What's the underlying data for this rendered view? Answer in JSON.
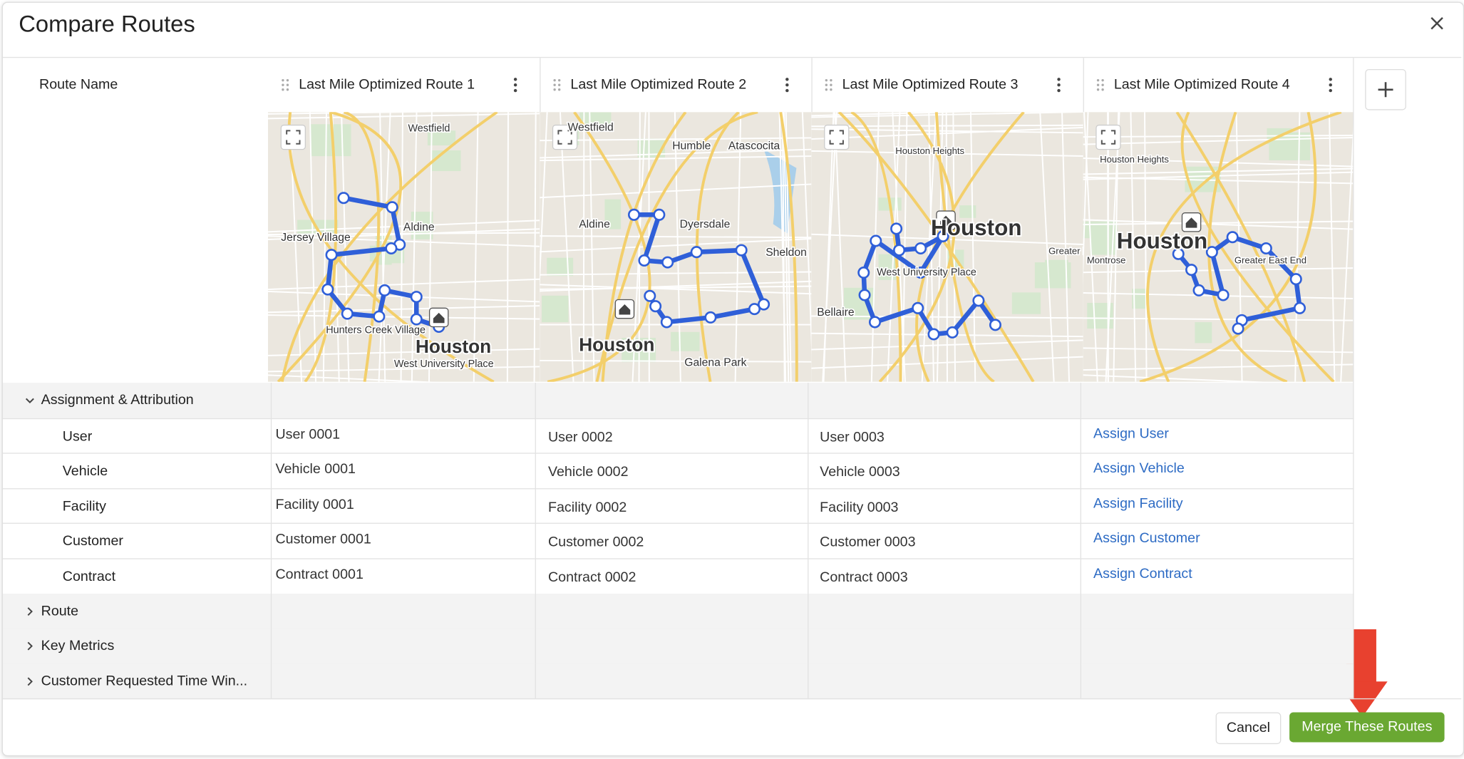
{
  "header": {
    "title": "Compare Routes"
  },
  "table": {
    "first_header": "Route Name",
    "routes": [
      "Last Mile Optimized Route 1",
      "Last Mile Optimized Route 2",
      "Last Mile Optimized Route 3",
      "Last Mile Optimized Route 4"
    ],
    "maps": [
      {
        "labels": [
          "Westfield",
          "Aldine",
          "Jersey Village",
          "Hunters Creek Village",
          "West University Place",
          "Houston"
        ]
      },
      {
        "labels": [
          "Westfield",
          "Humble",
          "Atascocita",
          "Aldine",
          "Dyersdale",
          "Sheldon",
          "Houston",
          "Galena Park"
        ]
      },
      {
        "labels": [
          "Houston Heights",
          "Houston",
          "Bellaire",
          "West University Place",
          "Greater East End"
        ]
      },
      {
        "labels": [
          "Houston Heights",
          "Houston",
          "Montrose",
          "Greater East End"
        ]
      }
    ],
    "sections": [
      {
        "name": "Assignment & Attribution",
        "rows": [
          {
            "label": "User",
            "values": [
              "User 0001",
              "User 0002",
              "User 0003",
              "Assign User"
            ]
          },
          {
            "label": "Vehicle",
            "values": [
              "Vehicle 0001",
              "Vehicle 0002",
              "Vehicle 0003",
              "Assign Vehicle"
            ]
          },
          {
            "label": "Facility",
            "values": [
              "Facility 0001",
              "Facility 0002",
              "Facility 0003",
              "Assign Facility"
            ]
          },
          {
            "label": "Customer",
            "values": [
              "Customer 0001",
              "Customer 0002",
              "Customer 0003",
              "Assign Customer"
            ]
          },
          {
            "label": "Contract",
            "values": [
              "Contract 0001",
              "Contract 0002",
              "Contract 0003",
              "Assign Contract"
            ]
          }
        ]
      },
      {
        "name": "Route",
        "rows": []
      },
      {
        "name": "Key Metrics",
        "rows": []
      },
      {
        "name": "Customer Requested Time Win...",
        "rows": []
      }
    ]
  },
  "footer": {
    "cancel": "Cancel",
    "merge": "Merge These Routes"
  }
}
